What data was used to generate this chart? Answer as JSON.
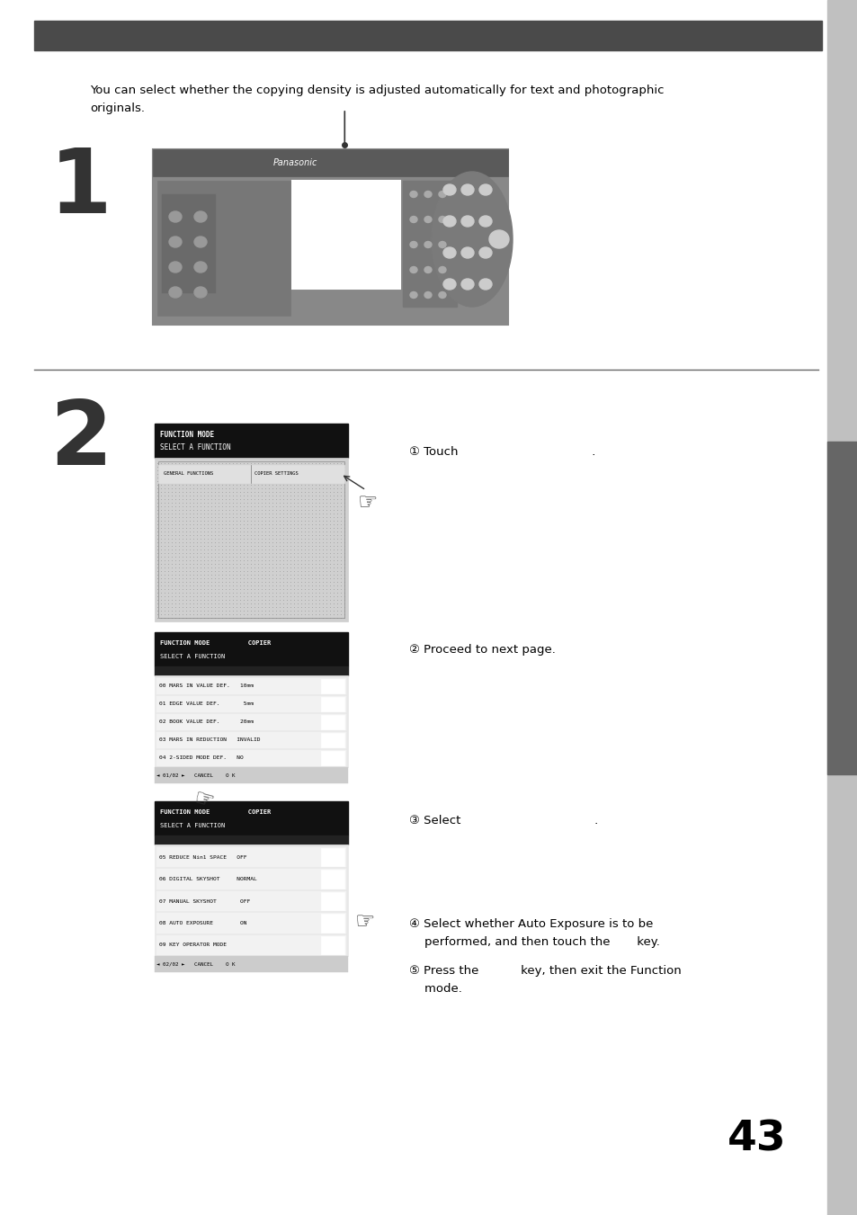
{
  "bg_color": "#ffffff",
  "sidebar_color": "#c0c0c0",
  "dark_sidebar_color": "#666666",
  "top_bar_color": "#4a4a4a",
  "intro_text_line1": "You can select whether the copying density is adjusted automatically for text and photographic",
  "intro_text_line2": "originals.",
  "step1_number": "1",
  "step2_number": "2",
  "page_number": "43",
  "screen1_items": [
    "GENERAL FUNCTIONS",
    "COPIER SETTINGS"
  ],
  "screen2_items": [
    "00 MARS IN VALUE DEF.   10mm",
    "01 EDGE VALUE DEF.       5mm",
    "02 BOOK VALUE DEF.      20mm",
    "03 MARS IN REDUCTION   INVALID",
    "04 2-SIDED MODE DEF.   NO"
  ],
  "screen3_items": [
    "05 REDUCE Nin1 SPACE   OFF",
    "06 DIGITAL SKYSHOT     NORMAL",
    "07 MANUAL SKYSHOT       OFF",
    "08 AUTO EXPOSURE        ON",
    "09 KEY OPERATOR MODE"
  ],
  "instr1": "① Touch                                   .",
  "instr2": "② Proceed to next page.",
  "instr3": "③ Select                                   .",
  "instr4a": "④ Select whether Auto Exposure is to be",
  "instr4b": "    performed, and then touch the       key.",
  "instr5a": "⑤ Press the           key, then exit the Function",
  "instr5b": "    mode."
}
